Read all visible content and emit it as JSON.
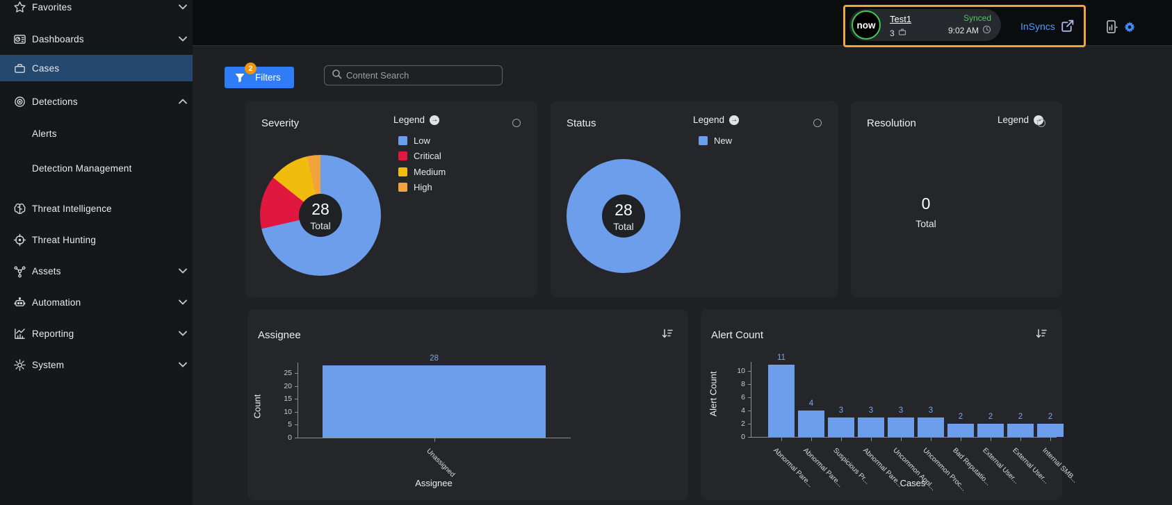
{
  "sidebar": {
    "items": [
      {
        "label": "Favorites",
        "icon": "star",
        "chevron": "down",
        "selected": false,
        "child": false
      },
      {
        "label": "Dashboards",
        "icon": "dashboard",
        "chevron": "down",
        "selected": false,
        "child": false
      },
      {
        "label": "Cases",
        "icon": "briefcase",
        "chevron": null,
        "selected": true,
        "child": false
      },
      {
        "label": "Detections",
        "icon": "detections",
        "chevron": "up",
        "selected": false,
        "child": false
      },
      {
        "label": "Alerts",
        "icon": null,
        "chevron": null,
        "selected": false,
        "child": true
      },
      {
        "label": "Detection Management",
        "icon": null,
        "chevron": null,
        "selected": false,
        "child": true
      },
      {
        "label": "Threat Intelligence",
        "icon": "brain",
        "chevron": null,
        "selected": false,
        "child": false
      },
      {
        "label": "Threat Hunting",
        "icon": "crosshair",
        "chevron": null,
        "selected": false,
        "child": false
      },
      {
        "label": "Assets",
        "icon": "network",
        "chevron": "down",
        "selected": false,
        "child": false
      },
      {
        "label": "Automation",
        "icon": "robot",
        "chevron": "down",
        "selected": false,
        "child": false
      },
      {
        "label": "Reporting",
        "icon": "chart",
        "chevron": "down",
        "selected": false,
        "child": false
      },
      {
        "label": "System",
        "icon": "gear",
        "chevron": "down",
        "selected": false,
        "child": false
      }
    ]
  },
  "topbar": {
    "logo_text": "now",
    "instance_name": "Test1",
    "instance_count": "3",
    "sync_status": "Synced",
    "sync_time": "9:02 AM",
    "link_label": "InSyncs"
  },
  "toolbar": {
    "filters_label": "Filters",
    "filters_badge": "2",
    "search_placeholder": "Content Search"
  },
  "cards": {
    "severity": {
      "title": "Severity",
      "legend_title": "Legend",
      "total_value": "28",
      "total_label": "Total",
      "chart": {
        "type": "donut",
        "segments": [
          {
            "label": "Low",
            "value": 20,
            "color": "#6d9eeb"
          },
          {
            "label": "Critical",
            "value": 4,
            "color": "#e0173f"
          },
          {
            "label": "Medium",
            "value": 3,
            "color": "#f0bd0e"
          },
          {
            "label": "High",
            "value": 1,
            "color": "#f2a33c"
          }
        ]
      }
    },
    "status": {
      "title": "Status",
      "legend_title": "Legend",
      "total_value": "28",
      "total_label": "Total",
      "chart": {
        "type": "donut",
        "segments": [
          {
            "label": "New",
            "value": 28,
            "color": "#6d9eeb"
          }
        ]
      }
    },
    "resolution": {
      "title": "Resolution",
      "legend_title": "Legend",
      "total_value": "0",
      "total_label": "Total",
      "chart": {
        "type": "donut",
        "segments": []
      }
    },
    "assignee": {
      "title": "Assignee",
      "chart": {
        "type": "bar",
        "xlabel": "Assignee",
        "ylabel": "Count",
        "yticks": [
          25,
          20,
          15,
          10,
          5,
          0
        ],
        "categories": [
          "Unassigned"
        ],
        "values": [
          28
        ],
        "bar_color": "#6d9eeb"
      }
    },
    "alert_count": {
      "title": "Alert Count",
      "chart": {
        "type": "bar",
        "xlabel": "Cases",
        "ylabel": "Alert Count",
        "yticks": [
          10,
          8,
          6,
          4,
          2,
          0
        ],
        "categories": [
          "Abnormal Pare...",
          "Abnormal Pare...",
          "Suspicious Pr...",
          "Abnormal Pare...",
          "Uncommon Appl...",
          "Uncommon Proc...",
          "Bad Reputatio...",
          "External User...",
          "External User...",
          "Internal SMB..."
        ],
        "values": [
          11,
          4,
          3,
          3,
          3,
          3,
          2,
          2,
          2,
          2
        ],
        "bar_color": "#6d9eeb"
      }
    }
  }
}
